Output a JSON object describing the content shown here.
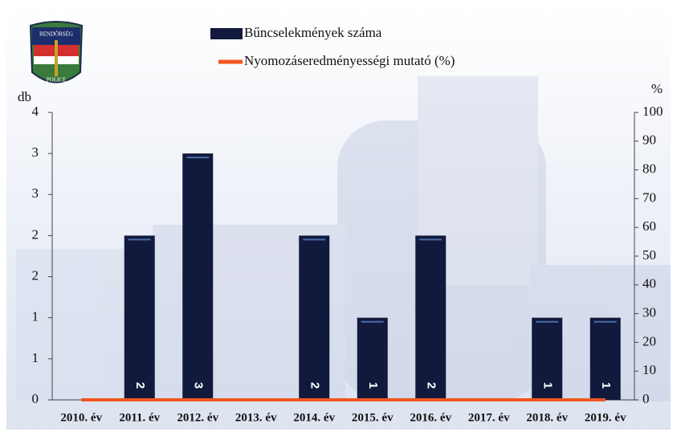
{
  "logo": {
    "top": "RENDŐRSÉG",
    "bottom": "POLICE"
  },
  "chart_data": {
    "type": "bar",
    "categories": [
      "2010. év",
      "2011. év",
      "2012. év",
      "2013. év",
      "2014. év",
      "2015. év",
      "2016. év",
      "2017. év",
      "2018. év",
      "2019. év"
    ],
    "y_label": "db",
    "y2_label": "%",
    "ylim": [
      0,
      3.5
    ],
    "yticks": [
      0,
      {
        "value": 0.5,
        "label": "1"
      },
      1,
      {
        "value": 1.5,
        "label": "2"
      },
      2,
      {
        "value": 2.5,
        "label": "3"
      },
      3,
      {
        "value": 3.5,
        "label": "4"
      }
    ],
    "y2lim": [
      0,
      100
    ],
    "y2ticks": [
      0,
      10,
      20,
      30,
      40,
      50,
      60,
      70,
      80,
      90,
      100
    ],
    "series": [
      {
        "name": "Bűncselekmények száma",
        "type": "bar",
        "color": "#111a3c",
        "values": [
          null,
          2,
          3,
          null,
          2,
          1,
          2,
          null,
          1,
          1
        ]
      },
      {
        "name": "Nyomozáseredményességi mutató (%)",
        "type": "line",
        "axis": "y2",
        "color": "#f0561e",
        "values": [
          0,
          0,
          0,
          0,
          0,
          0,
          0,
          0,
          0,
          0
        ]
      }
    ]
  }
}
